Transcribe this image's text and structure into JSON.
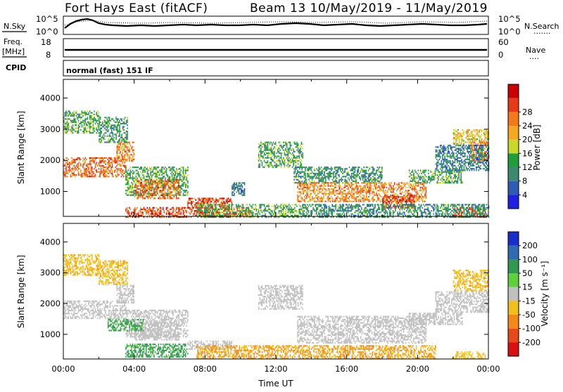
{
  "header": {
    "station": "Fort Hays East (fitACF)",
    "beam_dates": "Beam 13 10/May/2019 - 11/May/2019"
  },
  "noise_panel": {
    "left_label": "N.Sky",
    "left_tick_top": "10^5",
    "left_tick_bottom": "10^0",
    "right_tick_top": "10^5",
    "right_tick_bottom": "10^0",
    "right_label": "N.Search",
    "right_legend_dots": "·······"
  },
  "freq_panel": {
    "left_label_line1": "Freq.",
    "left_label_line2": "[MHz]",
    "left_tick_top": "18",
    "left_tick_bottom": "8",
    "right_tick_top": "60",
    "right_tick_bottom": "0",
    "right_label": "Nave",
    "right_legend_dots": "····"
  },
  "cpid": {
    "label": "CPID",
    "value": "normal (fast) 151 IF"
  },
  "colors": {
    "power": [
      "#1f1fe6",
      "#2e5bb3",
      "#3a8a72",
      "#1f9e3a",
      "#c8d92a",
      "#f5a623",
      "#f27a1a",
      "#e63b1a",
      "#cc0000"
    ],
    "velocity": [
      "#1a2ecc",
      "#2f6bb0",
      "#2f9a4f",
      "#5ed13a",
      "#c0c0c0",
      "#f2c01a",
      "#f28a1a",
      "#e64a1a",
      "#d91010"
    ]
  },
  "chart_data": [
    {
      "type": "heatmap",
      "name": "power",
      "ylabel": "Slant Range [km]",
      "yticks": [
        "1000",
        "2000",
        "3000",
        "4000"
      ],
      "ylim": [
        200,
        4600
      ],
      "xlim": [
        0,
        24
      ],
      "colorbar_label": "Power [dB]",
      "colorbar_ticks": [
        "4",
        "8",
        "12",
        "16",
        "20",
        "24",
        "28"
      ],
      "zlim": [
        0,
        32
      ],
      "bands": [
        {
          "x0": 0.0,
          "x1": 3.5,
          "r0": 1500,
          "r1": 2100,
          "v": 24
        },
        {
          "x0": 3.0,
          "x1": 4.0,
          "r0": 2000,
          "r1": 2600,
          "v": 22
        },
        {
          "x0": 0.0,
          "x1": 2.0,
          "r0": 2900,
          "r1": 3600,
          "v": 12
        },
        {
          "x0": 2.0,
          "x1": 3.6,
          "r0": 2600,
          "r1": 3400,
          "v": 10
        },
        {
          "x0": 3.5,
          "x1": 7.0,
          "r0": 900,
          "r1": 1800,
          "v": 12
        },
        {
          "x0": 4.0,
          "x1": 6.5,
          "r0": 800,
          "r1": 1400,
          "v": 24
        },
        {
          "x0": 7.0,
          "x1": 9.5,
          "r0": 500,
          "r1": 800,
          "v": 26
        },
        {
          "x0": 3.5,
          "x1": 10.5,
          "r0": 200,
          "r1": 500,
          "v": 26
        },
        {
          "x0": 7.5,
          "x1": 13.5,
          "r0": 200,
          "r1": 600,
          "v": 12
        },
        {
          "x0": 9.5,
          "x1": 10.2,
          "r0": 900,
          "r1": 1300,
          "v": 8
        },
        {
          "x0": 11.0,
          "x1": 13.5,
          "r0": 1800,
          "r1": 2600,
          "v": 12
        },
        {
          "x0": 13.0,
          "x1": 18.0,
          "r0": 1300,
          "r1": 1800,
          "v": 10
        },
        {
          "x0": 13.2,
          "x1": 20.5,
          "r0": 700,
          "r1": 1300,
          "v": 22
        },
        {
          "x0": 18.0,
          "x1": 19.8,
          "r0": 500,
          "r1": 900,
          "v": 27
        },
        {
          "x0": 19.5,
          "x1": 22.5,
          "r0": 1300,
          "r1": 1700,
          "v": 12
        },
        {
          "x0": 22.0,
          "x1": 23.8,
          "r0": 200,
          "r1": 500,
          "v": 26
        },
        {
          "x0": 22.0,
          "x1": 24.0,
          "r0": 2500,
          "r1": 3000,
          "v": 18
        },
        {
          "x0": 23.0,
          "x1": 24.0,
          "r0": 2000,
          "r1": 2600,
          "v": 22
        },
        {
          "x0": 21.0,
          "x1": 24.0,
          "r0": 1700,
          "r1": 2500,
          "v": 8
        },
        {
          "x0": 13.5,
          "x1": 24.0,
          "r0": 200,
          "r1": 600,
          "v": 10
        }
      ]
    },
    {
      "type": "heatmap",
      "name": "velocity",
      "ylabel": "Slant Range [km]",
      "yticks": [
        "1000",
        "2000",
        "3000",
        "4000"
      ],
      "ylim": [
        200,
        4600
      ],
      "xlim": [
        0,
        24
      ],
      "xlabel": "Time UT",
      "xticks": [
        "00:00",
        "04:00",
        "08:00",
        "12:00",
        "16:00",
        "20:00",
        "00:00"
      ],
      "colorbar_label": "Velocity [m s⁻¹]",
      "colorbar_ticks": [
        "200",
        "100",
        "50",
        "15",
        "-15",
        "-50",
        "-100",
        "-200"
      ],
      "zlim": [
        -250,
        250
      ],
      "bands": [
        {
          "x0": 0.0,
          "x1": 3.5,
          "r0": 1500,
          "r1": 2100,
          "v": 0
        },
        {
          "x0": 3.0,
          "x1": 4.0,
          "r0": 2000,
          "r1": 2600,
          "v": 0
        },
        {
          "x0": 0.0,
          "x1": 2.0,
          "r0": 2900,
          "r1": 3600,
          "v": -40
        },
        {
          "x0": 2.0,
          "x1": 3.6,
          "r0": 2600,
          "r1": 3400,
          "v": -40
        },
        {
          "x0": 3.5,
          "x1": 7.0,
          "r0": 900,
          "r1": 1800,
          "v": 0
        },
        {
          "x0": 4.0,
          "x1": 6.5,
          "r0": 800,
          "r1": 1400,
          "v": 0
        },
        {
          "x0": 2.5,
          "x1": 4.5,
          "r0": 1100,
          "r1": 1500,
          "v": 35
        },
        {
          "x0": 3.5,
          "x1": 7.0,
          "r0": 250,
          "r1": 700,
          "v": 35
        },
        {
          "x0": 7.0,
          "x1": 9.5,
          "r0": 500,
          "r1": 800,
          "v": 0
        },
        {
          "x0": 7.5,
          "x1": 21.0,
          "r0": 200,
          "r1": 650,
          "v": -50
        },
        {
          "x0": 11.0,
          "x1": 13.5,
          "r0": 1800,
          "r1": 2600,
          "v": 0
        },
        {
          "x0": 13.2,
          "x1": 20.5,
          "r0": 700,
          "r1": 1600,
          "v": 0
        },
        {
          "x0": 19.5,
          "x1": 22.5,
          "r0": 1300,
          "r1": 1700,
          "v": 0
        },
        {
          "x0": 22.0,
          "x1": 24.0,
          "r0": 2400,
          "r1": 3100,
          "v": -40
        },
        {
          "x0": 21.0,
          "x1": 24.0,
          "r0": 1700,
          "r1": 2400,
          "v": 0
        },
        {
          "x0": 22.0,
          "x1": 23.8,
          "r0": 200,
          "r1": 450,
          "v": -30
        }
      ]
    }
  ]
}
